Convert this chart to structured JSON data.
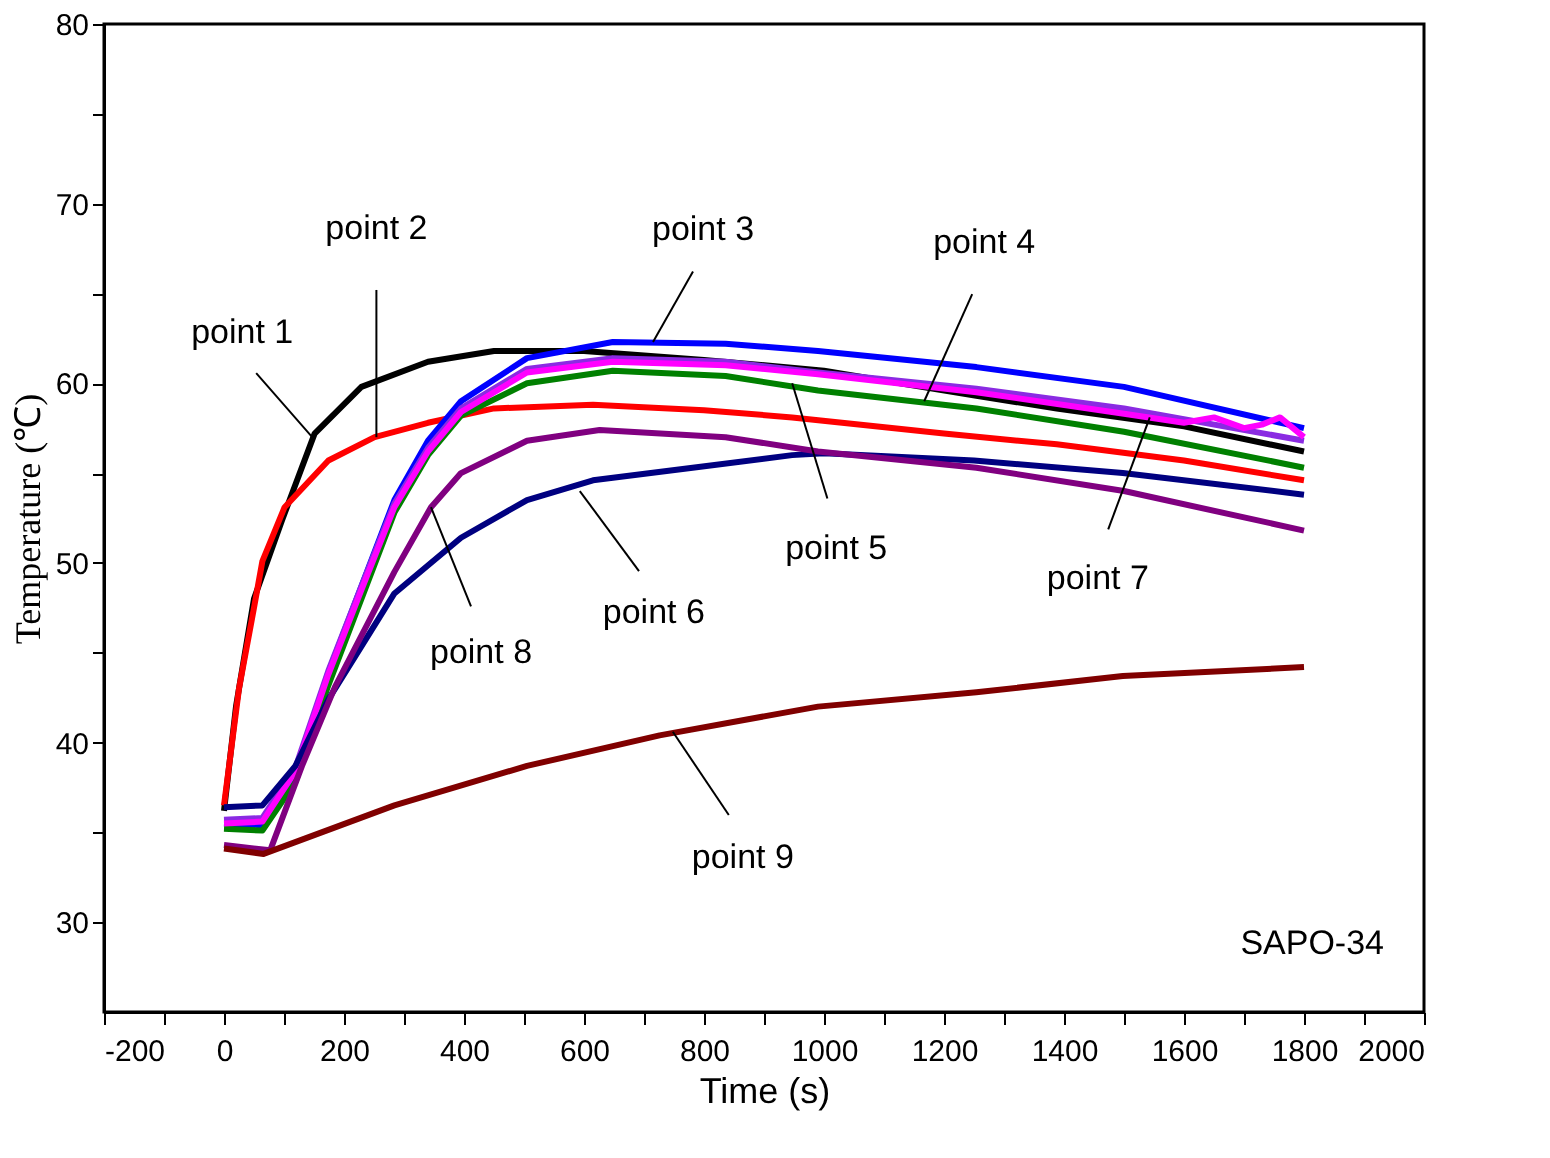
{
  "chart_data": {
    "type": "line",
    "xlabel": "Time (s)",
    "ylabel": "Temperature (℃)",
    "xlim": [
      -200,
      2000
    ],
    "ylim": [
      25,
      80
    ],
    "xticks": [
      -200,
      {
        "value": -100,
        "label": null
      },
      0,
      {
        "value": 100,
        "label": null
      },
      200,
      {
        "value": 300,
        "label": null
      },
      400,
      {
        "value": 500,
        "label": null
      },
      600,
      {
        "value": 700,
        "label": null
      },
      800,
      {
        "value": 900,
        "label": null
      },
      1000,
      {
        "value": 1100,
        "label": null
      },
      1200,
      {
        "value": 1300,
        "label": null
      },
      1400,
      {
        "value": 1500,
        "label": null
      },
      1600,
      {
        "value": 1700,
        "label": null
      },
      1800,
      {
        "value": 1900,
        "label": null
      },
      2000
    ],
    "yticks": [
      30,
      {
        "value": 35,
        "label": null
      },
      40,
      {
        "value": 45,
        "label": null
      },
      50,
      {
        "value": 55,
        "label": null
      },
      60,
      {
        "value": 65,
        "label": null
      },
      70,
      {
        "value": 75,
        "label": null
      },
      80
    ],
    "grid": false,
    "marker": "none",
    "line_style": "solid",
    "series": [
      {
        "color": "#000000",
        "x": [
          0,
          20,
          50,
          97,
          151,
          229,
          340,
          450,
          600,
          800,
          1000,
          1254,
          1388,
          1600,
          1800
        ],
        "values": [
          36.2,
          42,
          48,
          52.4,
          57.2,
          59.8,
          61.2,
          61.8,
          61.8,
          61.3,
          60.7,
          59.3,
          58.6,
          57.6,
          56.2
        ]
      },
      {
        "color": "#ff0000",
        "x": [
          0,
          25,
          50,
          64,
          101,
          174,
          251,
          340,
          450,
          615,
          800,
          947,
          1200,
          1388,
          1600,
          1800
        ],
        "values": [
          36.5,
          43,
          47.5,
          50.1,
          53.1,
          55.7,
          57,
          57.8,
          58.6,
          58.8,
          58.5,
          58.1,
          57.2,
          56.6,
          55.7,
          54.6
        ]
      },
      {
        "color": "#0000ff",
        "x": [
          0,
          64,
          119,
          174,
          229,
          284,
          340,
          395,
          505,
          648,
          836,
          990,
          1254,
          1500,
          1800
        ],
        "values": [
          35.5,
          35.4,
          38.3,
          43.9,
          48.7,
          53.5,
          56.8,
          59,
          61.4,
          62.3,
          62.2,
          61.8,
          60.9,
          59.8,
          57.5
        ]
      },
      {
        "color": "#008000",
        "x": [
          0,
          64,
          119,
          174,
          229,
          284,
          340,
          395,
          505,
          648,
          836,
          990,
          1254,
          1500,
          1800
        ],
        "values": [
          35.2,
          35.1,
          37.8,
          43.2,
          48,
          52.8,
          56,
          58.2,
          60,
          60.7,
          60.4,
          59.6,
          58.6,
          57.3,
          55.3
        ]
      },
      {
        "color": "#8a2be2",
        "x": [
          0,
          64,
          119,
          174,
          229,
          284,
          340,
          395,
          505,
          648,
          836,
          990,
          1254,
          1500,
          1800
        ],
        "values": [
          35.7,
          35.8,
          38.6,
          44,
          48.7,
          53.3,
          56.4,
          58.6,
          60.8,
          61.4,
          61.2,
          60.6,
          59.7,
          58.6,
          56.8
        ]
      },
      {
        "color": "#ff00ff",
        "x": [
          0,
          64,
          119,
          174,
          229,
          284,
          340,
          395,
          505,
          648,
          836,
          990,
          1254,
          1500,
          1600,
          1650,
          1700,
          1730,
          1760,
          1800
        ],
        "values": [
          35.5,
          35.6,
          38.4,
          43.8,
          48.5,
          53.1,
          56.2,
          58.4,
          60.6,
          61.2,
          61,
          60.5,
          59.5,
          58.3,
          57.8,
          58.1,
          57.5,
          57.7,
          58.1,
          57
        ]
      },
      {
        "color": "#000080",
        "x": [
          0,
          64,
          119,
          174,
          284,
          395,
          505,
          615,
          781,
          947,
          1000,
          1250,
          1498,
          1800
        ],
        "values": [
          36.4,
          36.5,
          38.7,
          42.4,
          48.3,
          51.4,
          53.5,
          54.6,
          55.3,
          56,
          56.1,
          55.7,
          55,
          53.8
        ]
      },
      {
        "color": "#800080",
        "x": [
          0,
          77,
          130,
          185,
          284,
          345,
          395,
          505,
          626,
          836,
          990,
          1254,
          1500,
          1800
        ],
        "values": [
          34.3,
          34,
          38.7,
          43.1,
          49.5,
          53.1,
          55,
          56.8,
          57.4,
          57,
          56.2,
          55.3,
          54,
          51.8
        ]
      },
      {
        "color": "#800000",
        "x": [
          0,
          66,
          284,
          505,
          726,
          990,
          1254,
          1498,
          1800
        ],
        "values": [
          34.1,
          33.8,
          36.5,
          38.7,
          40.4,
          42,
          42.8,
          43.7,
          44.2
        ]
      }
    ],
    "annotations": [
      {
        "text": "point 1",
        "x": 147,
        "y": 57
      },
      {
        "text": "point 2",
        "x": 254,
        "y": 57
      },
      {
        "text": "point 3",
        "x": 715,
        "y": 62.3
      },
      {
        "text": "point 4",
        "x": 1167,
        "y": 59
      },
      {
        "text": "point 5",
        "x": 947,
        "y": 60
      },
      {
        "text": "point 6",
        "x": 593,
        "y": 54
      },
      {
        "text": "point 7",
        "x": 1543,
        "y": 58.1
      },
      {
        "text": "point 8",
        "x": 345,
        "y": 53.1
      },
      {
        "text": "point 9",
        "x": 748,
        "y": 40.6
      },
      "SAPO-34"
    ]
  }
}
